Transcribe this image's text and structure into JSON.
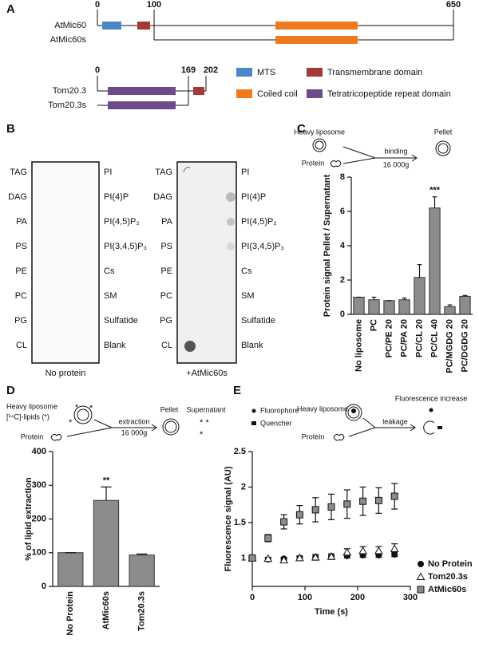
{
  "panel_labels": [
    "A",
    "B",
    "C",
    "D",
    "E"
  ],
  "domains": {
    "proteins": [
      "AtMic60",
      "AtMic60s",
      "Tom20.3",
      "Tom20.3s"
    ],
    "positions_mic": [
      "0",
      "100",
      "650"
    ],
    "positions_tom": [
      "0",
      "169",
      "202"
    ],
    "legend": [
      {
        "name": "MTS",
        "color": "#4a86c8"
      },
      {
        "name": "Transmembrane domain",
        "color": "#a33a3a"
      },
      {
        "name": "Coiled coil",
        "color": "#ef7a1e"
      },
      {
        "name": "Tetratricopeptide repeat domain",
        "color": "#6d4a8c"
      }
    ]
  },
  "lipid_strips": {
    "left_lipids": [
      "TAG",
      "DAG",
      "PA",
      "PS",
      "PE",
      "PC",
      "PG",
      "CL"
    ],
    "right_lipids": [
      "PI",
      "PI(4)P",
      "PI(4,5)P₂",
      "PI(3,4,5)P₃",
      "Cs",
      "SM",
      "Sulfatide",
      "Blank"
    ],
    "captions": [
      "No protein",
      "+AtMic60s"
    ]
  },
  "chart_data": [
    {
      "type": "bar",
      "ylabel": "Protein signal Pellet / Supernatant",
      "categories": [
        "No liposome",
        "PC",
        "PC/PE 20",
        "PC/PA 20",
        "PC/CL 20",
        "PC/CL 40",
        "PC/MGDG 20",
        "PC/DGDG 20"
      ],
      "values": [
        1.0,
        0.85,
        0.8,
        0.85,
        2.15,
        6.2,
        0.45,
        1.05
      ],
      "errors": [
        0,
        0.15,
        0,
        0.1,
        0.75,
        0.65,
        0.1,
        0.05
      ],
      "color": "#8c8c8c",
      "ylim": [
        0,
        8
      ],
      "yticks": [
        0,
        2,
        4,
        6,
        8
      ],
      "significance": [
        {
          "category": "PC/CL 40",
          "label": "***"
        }
      ],
      "scheme": {
        "liposome": "Heavy liposome",
        "protein": "Protein",
        "step": "binding",
        "speed": "16 000g",
        "result": "Pellet"
      }
    },
    {
      "type": "bar",
      "ylabel": "% of lipid extraction",
      "categories": [
        "No Protein",
        "AtMic60s",
        "Tom20.3s"
      ],
      "values": [
        100,
        255,
        93
      ],
      "errors": [
        0,
        40,
        3
      ],
      "color": "#8c8c8c",
      "ylim": [
        0,
        400
      ],
      "yticks": [
        0,
        100,
        200,
        300,
        400
      ],
      "significance": [
        {
          "category": "AtMic60s",
          "label": "**"
        }
      ],
      "scheme": {
        "liposome": "Heavy liposome",
        "lipids": "[¹⁴C]-lipids (*)",
        "protein": "Protein",
        "step": "extraction",
        "speed": "16 000g",
        "result": "Pellet",
        "other": "Supernatant"
      }
    },
    {
      "type": "scatter",
      "xlabel": "Time (s)",
      "ylabel": "Fluorescence signal (AU)",
      "x": [
        0,
        30,
        60,
        90,
        120,
        150,
        180,
        210,
        240,
        270
      ],
      "series": [
        {
          "name": "No Protein",
          "color": "#111111",
          "marker": "circle",
          "values": [
            1.0,
            0.98,
            0.99,
            1.0,
            1.01,
            1.02,
            1.03,
            1.04,
            1.04,
            1.05
          ],
          "errors": [
            0.02,
            0.02,
            0.02,
            0.02,
            0.02,
            0.02,
            0.03,
            0.03,
            0.03,
            0.03
          ]
        },
        {
          "name": "Tom20.3s",
          "color": "#ffffff",
          "marker": "triangle",
          "values": [
            1.0,
            0.99,
            0.97,
            1.0,
            1.01,
            1.02,
            1.08,
            1.1,
            1.1,
            1.13
          ],
          "errors": [
            0.02,
            0.02,
            0.03,
            0.03,
            0.04,
            0.04,
            0.05,
            0.06,
            0.06,
            0.07
          ]
        },
        {
          "name": "AtMic60s",
          "color": "#8c8c8c",
          "marker": "square",
          "values": [
            1.0,
            1.28,
            1.51,
            1.61,
            1.68,
            1.72,
            1.76,
            1.8,
            1.81,
            1.87
          ],
          "errors": [
            0.03,
            0.05,
            0.1,
            0.13,
            0.17,
            0.18,
            0.2,
            0.2,
            0.18,
            0.18
          ]
        }
      ],
      "xlim": [
        0,
        300
      ],
      "xticks": [
        0,
        100,
        200,
        300
      ],
      "ylim": [
        0.6,
        2.5
      ],
      "yticks": [
        1,
        1.5,
        2,
        2.5
      ],
      "legend": "right",
      "scheme": {
        "fluorophore": "Fluorophore",
        "quencher": "Quencher",
        "liposome": "Heavy liposome",
        "protein": "Protein",
        "step": "leakage",
        "result": "Fluorescence increase"
      }
    }
  ]
}
